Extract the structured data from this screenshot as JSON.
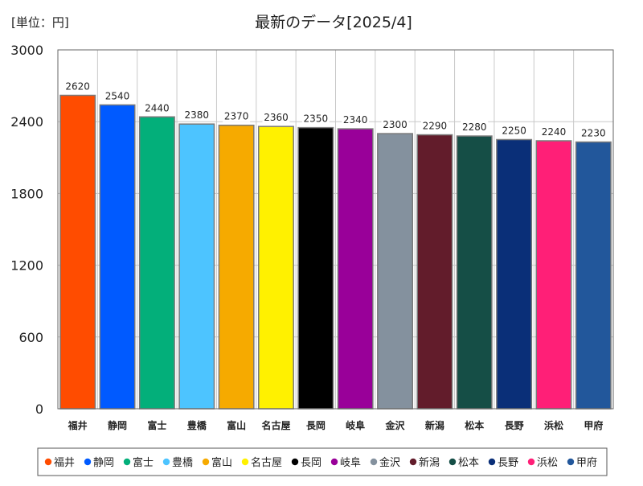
{
  "unit_label": "[単位：円]",
  "chart_data": {
    "type": "bar",
    "title": "最新のデータ[2025/4]",
    "categories": [
      "福井",
      "静岡",
      "富士",
      "豊橋",
      "富山",
      "名古屋",
      "長岡",
      "岐阜",
      "金沢",
      "新潟",
      "松本",
      "長野",
      "浜松",
      "甲府"
    ],
    "values": [
      2620,
      2540,
      2440,
      2380,
      2370,
      2360,
      2350,
      2340,
      2300,
      2290,
      2280,
      2250,
      2240,
      2230
    ],
    "colors": [
      "#ff4c00",
      "#005aff",
      "#03af7a",
      "#4dc4ff",
      "#f6aa00",
      "#fff100",
      "#000000",
      "#990099",
      "#84919e",
      "#621c2b",
      "#154e46",
      "#0a2f78",
      "#ff1f77",
      "#22579b"
    ],
    "ylim": [
      0,
      3000
    ],
    "yticks": [
      0,
      600,
      1200,
      1800,
      2400,
      3000
    ],
    "grid": true,
    "legend_position": "bottom"
  }
}
